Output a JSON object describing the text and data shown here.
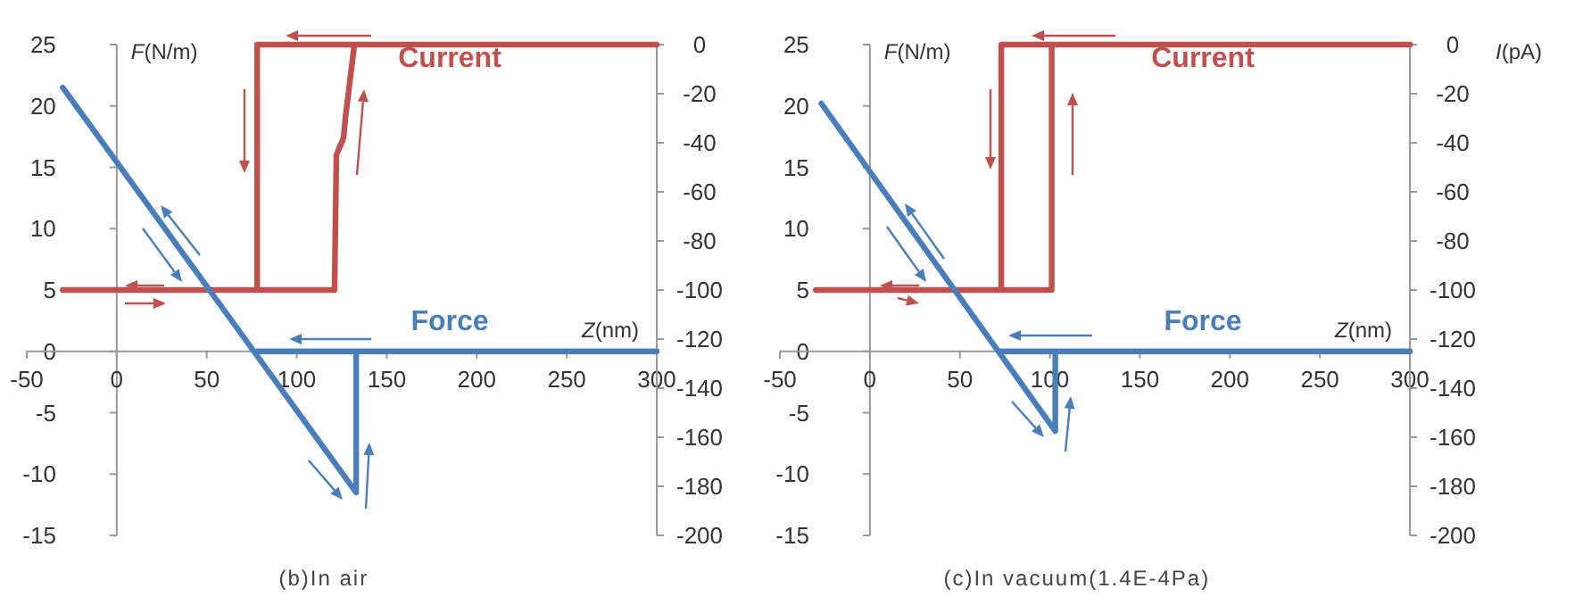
{
  "chart_data": [
    {
      "type": "line",
      "title": "(b)In air",
      "xlabel": "Z(nm)",
      "ylabel": "F(N/m)",
      "xlim": [
        -50,
        300
      ],
      "xticks": [
        -50,
        0,
        50,
        100,
        150,
        200,
        250,
        300
      ],
      "ylim": [
        -15,
        25
      ],
      "yticks": [
        -15,
        -10,
        -5,
        0,
        5,
        10,
        15,
        20,
        25
      ],
      "y2lim": [
        -200,
        0
      ],
      "y2ticks": [
        -200,
        -180,
        -160,
        -140,
        -120,
        -100,
        -80,
        -60,
        -40,
        -20,
        0
      ],
      "series": [
        {
          "name": "Current",
          "color": "#c0504d",
          "axis": "y2",
          "x": [
            -30,
            121,
            122,
            126,
            127,
            132,
            300,
            78,
            78
          ],
          "values": [
            -100,
            -100,
            -45,
            -38,
            -30,
            0,
            0,
            0,
            -100
          ]
        },
        {
          "name": "Force",
          "color": "#4a7ebb",
          "x": [
            -30,
            133,
            133,
            300,
            78
          ],
          "values": [
            21.5,
            -11.5,
            0,
            0,
            0
          ]
        }
      ]
    },
    {
      "type": "line",
      "title": "(c)In vacuum(1.4E-4Pa)",
      "xlabel": "Z(nm)",
      "ylabel": "F(N/m)",
      "y2label": "I(pA)",
      "xlim": [
        -50,
        300
      ],
      "xticks": [
        -50,
        0,
        50,
        100,
        150,
        200,
        250,
        300
      ],
      "ylim": [
        -15,
        25
      ],
      "yticks": [
        -15,
        -10,
        -5,
        0,
        5,
        10,
        15,
        20,
        25
      ],
      "y2lim": [
        -200,
        0
      ],
      "y2ticks": [
        -200,
        -180,
        -160,
        -140,
        -120,
        -100,
        -80,
        -60,
        -40,
        -20,
        0
      ],
      "series": [
        {
          "name": "Current",
          "color": "#c0504d",
          "axis": "y2",
          "x": [
            -30,
            101,
            101,
            300,
            73,
            73
          ],
          "values": [
            -100,
            -100,
            0,
            0,
            0,
            -100
          ]
        },
        {
          "name": "Force",
          "color": "#4a7ebb",
          "x": [
            -27,
            103,
            103,
            300,
            72
          ],
          "values": [
            20.2,
            -6.5,
            0,
            0,
            0
          ]
        }
      ]
    }
  ]
}
